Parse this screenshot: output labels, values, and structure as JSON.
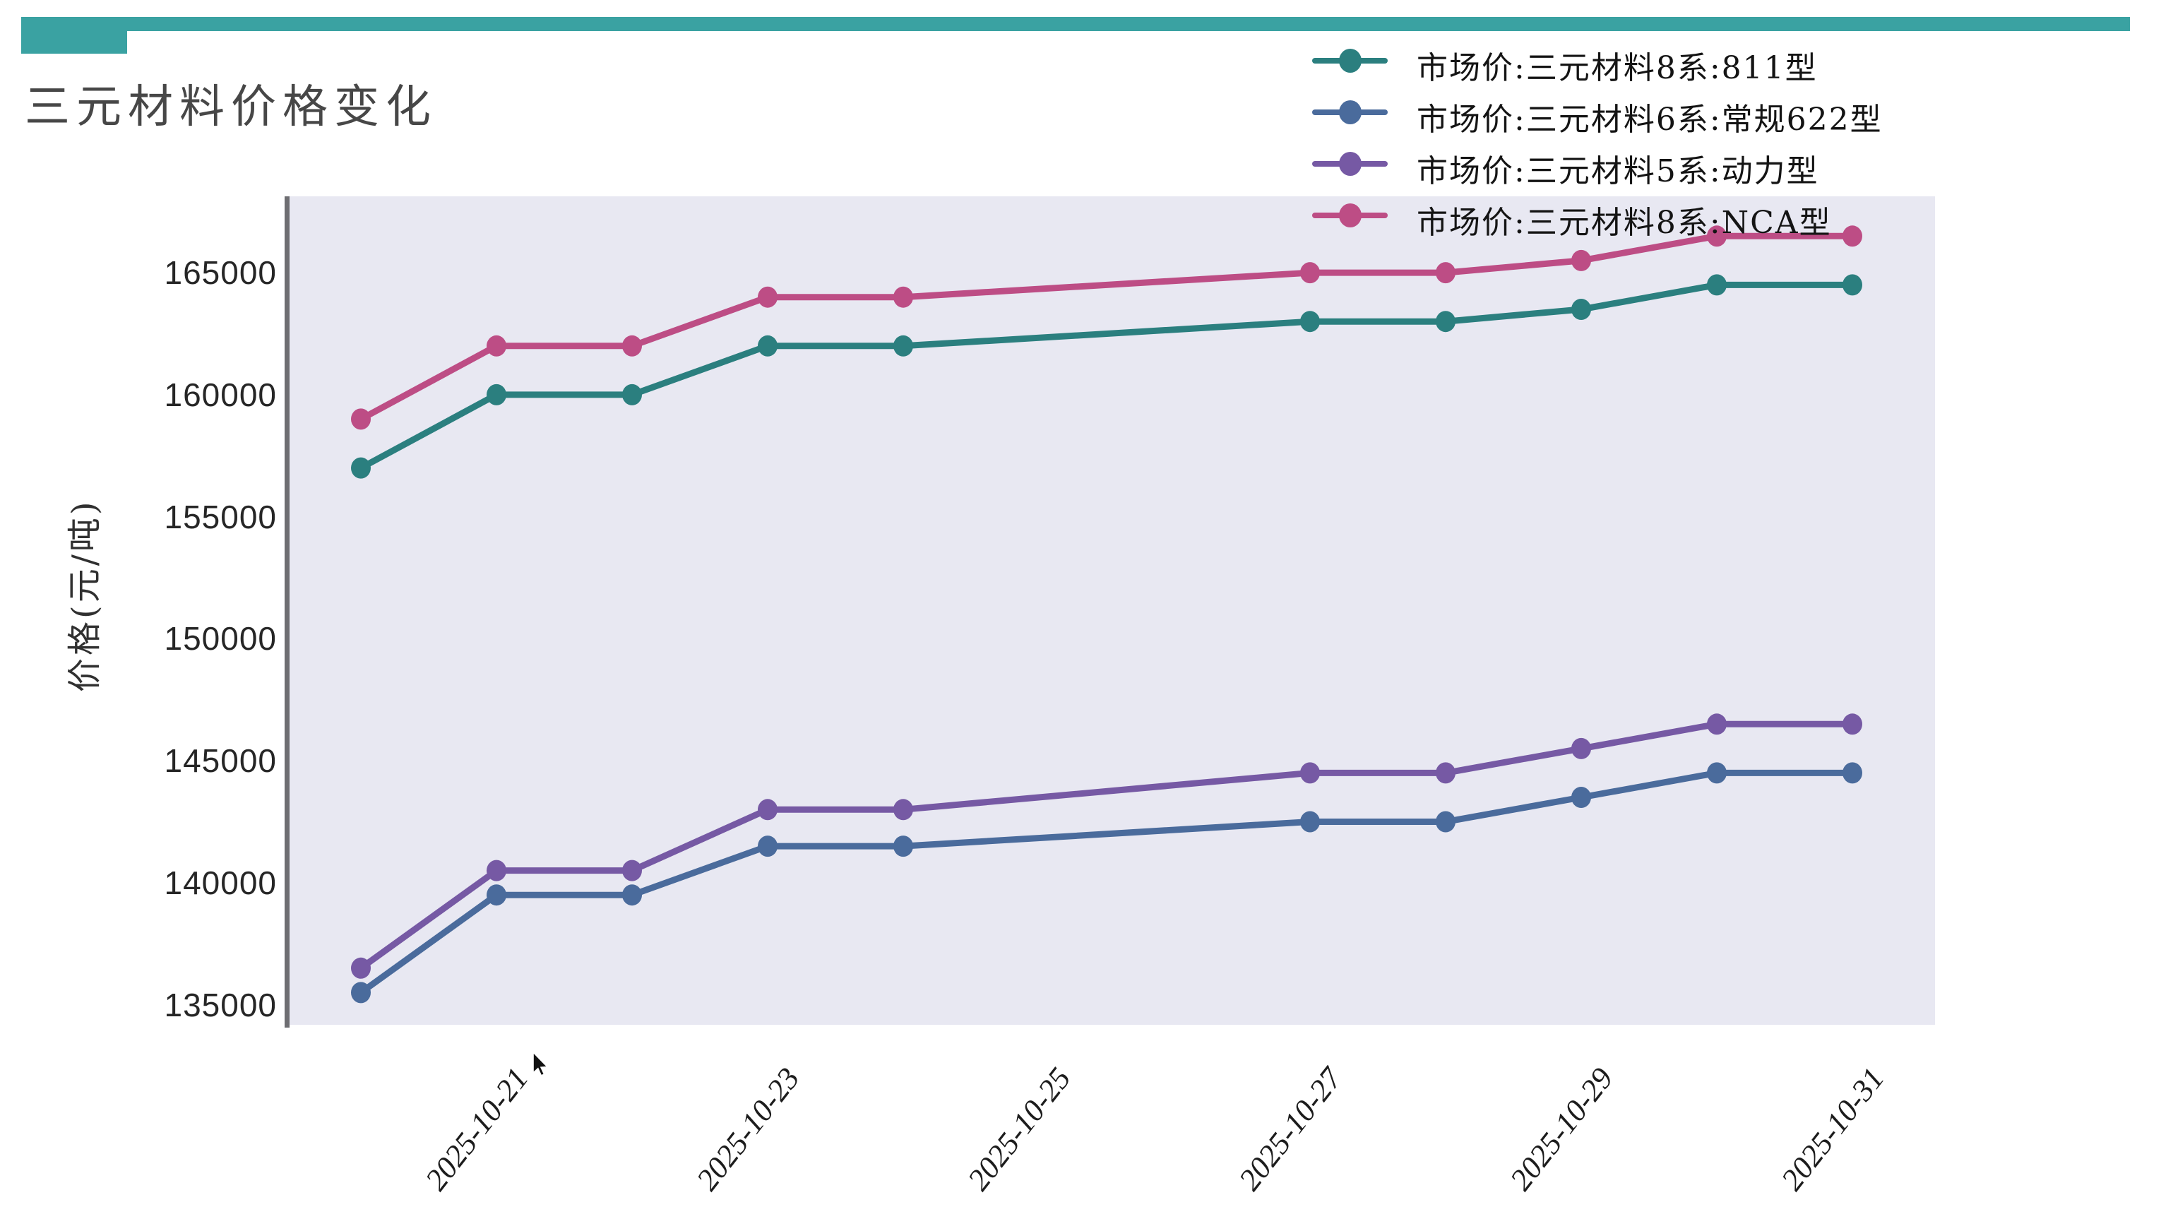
{
  "header": {
    "accent_color": "#3aa2a2"
  },
  "title": "三元材料价格变化",
  "cursor": "pointer-arrow",
  "chart_data": {
    "type": "line",
    "title": "三元材料价格变化",
    "xlabel": "",
    "ylabel": "价格(元/吨)",
    "x": [
      "2025-10-20",
      "2025-10-21",
      "2025-10-22",
      "2025-10-23",
      "2025-10-24",
      "2025-10-27",
      "2025-10-28",
      "2025-10-29",
      "2025-10-30",
      "2025-10-31"
    ],
    "day_index": [
      0,
      1,
      2,
      3,
      4,
      7,
      8,
      9,
      10,
      11
    ],
    "series": [
      {
        "name": "市场价:三元材料8系:811型",
        "color": "#2b7f7f",
        "values": [
          157000,
          160000,
          160000,
          162000,
          162000,
          163000,
          163000,
          163500,
          164500,
          164500
        ]
      },
      {
        "name": "市场价:三元材料6系:常规622型",
        "color": "#4a6b9c",
        "values": [
          135500,
          139500,
          139500,
          141500,
          141500,
          142500,
          142500,
          143500,
          144500,
          144500
        ]
      },
      {
        "name": "市场价:三元材料5系:动力型",
        "color": "#7659a4",
        "values": [
          136500,
          140500,
          140500,
          143000,
          143000,
          144500,
          144500,
          145500,
          146500,
          146500
        ]
      },
      {
        "name": "市场价:三元材料8系:NCA型",
        "color": "#bd4d85",
        "values": [
          159000,
          162000,
          162000,
          164000,
          164000,
          165000,
          165000,
          165500,
          166500,
          166500
        ]
      }
    ],
    "yticks": [
      135000,
      140000,
      145000,
      150000,
      155000,
      160000,
      165000
    ],
    "xticks": [
      {
        "label": "2025-10-21",
        "day_index": 1
      },
      {
        "label": "2025-10-23",
        "day_index": 3
      },
      {
        "label": "2025-10-25",
        "day_index": 5
      },
      {
        "label": "2025-10-27",
        "day_index": 7
      },
      {
        "label": "2025-10-29",
        "day_index": 9
      },
      {
        "label": "2025-10-31",
        "day_index": 11
      }
    ],
    "ylim": [
      134180,
      168130
    ],
    "grid": false,
    "legend_position": "top-right",
    "plot_background": "#e8e8f2"
  }
}
